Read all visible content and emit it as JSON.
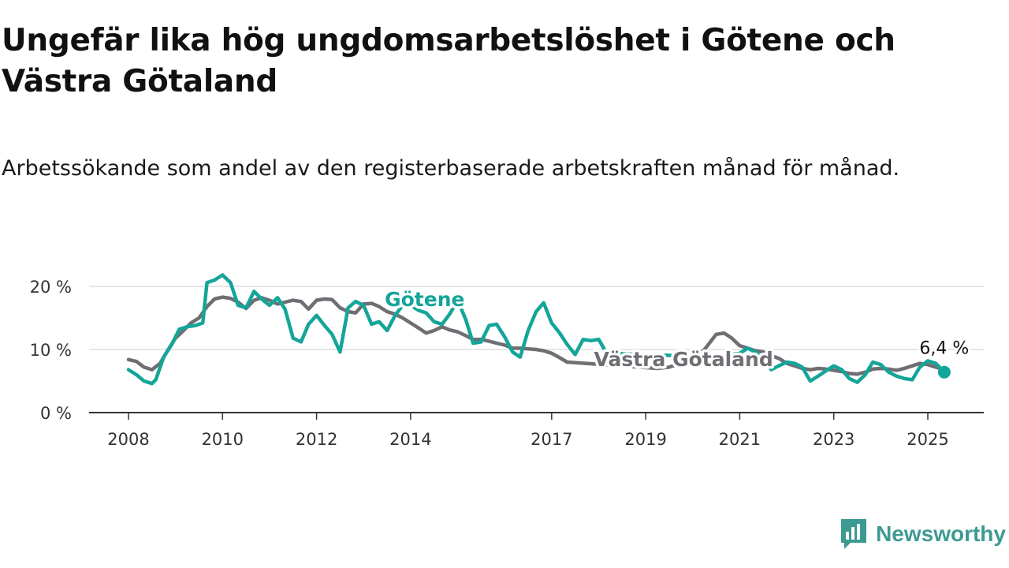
{
  "title": "Ungefär lika hög ungdomsarbetslöshet i Götene och Västra Götaland",
  "subtitle": "Arbetssökande som andel av den registerbaserade arbetskraften månad för månad.",
  "brand": {
    "name": "Newsworthy",
    "color": "#3d9a92",
    "icon": "newsworthy-logo-icon"
  },
  "colors": {
    "gotene": "#14a599",
    "vastra": "#6e6e73",
    "grid": "#dddddd",
    "axis": "#333333"
  },
  "chart_data": {
    "type": "line",
    "x_unit": "year (decimal)",
    "xlim": [
      2007.8,
      2026.2
    ],
    "ylim": [
      0,
      22
    ],
    "y_ticks": [
      0,
      10,
      20
    ],
    "y_tick_labels": [
      "0 %",
      "10 %",
      "20 %"
    ],
    "x_ticks": [
      2008,
      2010,
      2012,
      2014,
      2017,
      2019,
      2021,
      2023,
      2025
    ],
    "x_tick_labels": [
      "2008",
      "2010",
      "2012",
      "2014",
      "2017",
      "2019",
      "2021",
      "2023",
      "2025"
    ],
    "grid": true,
    "series": [
      {
        "name": "Västra Götaland",
        "x": [
          2008.0,
          2008.17,
          2008.33,
          2008.5,
          2008.67,
          2008.83,
          2009.0,
          2009.17,
          2009.33,
          2009.5,
          2009.67,
          2009.83,
          2010.0,
          2010.17,
          2010.33,
          2010.5,
          2010.67,
          2010.83,
          2011.0,
          2011.17,
          2011.33,
          2011.5,
          2011.67,
          2011.83,
          2012.0,
          2012.17,
          2012.33,
          2012.5,
          2012.67,
          2012.83,
          2013.0,
          2013.17,
          2013.33,
          2013.5,
          2013.67,
          2013.83,
          2014.0,
          2014.17,
          2014.33,
          2014.5,
          2014.67,
          2014.83,
          2015.0,
          2015.17,
          2015.33,
          2015.5,
          2015.67,
          2015.83,
          2016.0,
          2016.17,
          2016.33,
          2016.5,
          2016.67,
          2016.83,
          2017.0,
          2017.17,
          2017.33,
          2019.25,
          2019.5,
          2019.75,
          2020.0,
          2020.25,
          2020.5,
          2020.67,
          2020.83,
          2021.0,
          2021.17,
          2021.33,
          2021.5,
          2021.67,
          2021.83,
          2022.0,
          2022.17,
          2022.33,
          2022.5,
          2022.67,
          2022.83,
          2023.0,
          2023.17,
          2023.33,
          2023.5,
          2023.67,
          2023.83,
          2024.0,
          2024.17,
          2024.33,
          2024.5,
          2024.67,
          2024.83,
          2025.0,
          2025.17,
          2025.3
        ],
        "y": [
          8.4,
          8.1,
          7.2,
          6.8,
          7.8,
          9.8,
          11.8,
          13.0,
          14.2,
          15.0,
          16.8,
          18.0,
          18.3,
          18.1,
          17.5,
          16.5,
          17.8,
          18.2,
          17.8,
          17.2,
          17.5,
          17.8,
          17.6,
          16.4,
          17.8,
          18.0,
          17.9,
          16.6,
          16.0,
          15.8,
          17.2,
          17.3,
          16.8,
          16.0,
          15.6,
          15.0,
          14.2,
          13.4,
          12.6,
          13.0,
          13.6,
          13.1,
          12.8,
          12.2,
          11.6,
          11.6,
          11.3,
          11.0,
          10.7,
          10.2,
          10.2,
          10.1,
          10.0,
          9.8,
          9.4,
          8.7,
          8.0,
          7.0,
          7.2,
          7.8,
          8.6,
          10.0,
          12.4,
          12.6,
          11.8,
          10.6,
          10.2,
          9.8,
          9.6,
          9.0,
          8.6,
          7.8,
          7.4,
          7.0,
          6.8,
          7.0,
          6.9,
          6.7,
          6.5,
          6.2,
          6.1,
          6.4,
          6.9,
          7.0,
          6.9,
          6.7,
          7.0,
          7.4,
          7.8,
          7.6,
          7.2,
          6.9
        ]
      },
      {
        "name": "Götene",
        "x": [
          2008.0,
          2008.17,
          2008.33,
          2008.5,
          2008.58,
          2008.75,
          2008.92,
          2009.08,
          2009.25,
          2009.42,
          2009.58,
          2009.67,
          2009.83,
          2010.0,
          2010.17,
          2010.33,
          2010.5,
          2010.67,
          2010.83,
          2011.0,
          2011.17,
          2011.33,
          2011.5,
          2011.67,
          2011.83,
          2012.0,
          2012.17,
          2012.33,
          2012.5,
          2012.67,
          2012.83,
          2013.0,
          2013.17,
          2013.33,
          2013.5,
          2013.67,
          2013.83,
          2014.0,
          2014.17,
          2014.33,
          2014.5,
          2014.67,
          2014.83,
          2015.0,
          2015.17,
          2015.33,
          2015.5,
          2015.67,
          2015.83,
          2016.0,
          2016.17,
          2016.33,
          2016.5,
          2016.67,
          2016.83,
          2017.0,
          2017.17,
          2017.33,
          2017.5,
          2017.67,
          2017.83,
          2018.0,
          2018.17,
          2020.5,
          2020.67,
          2020.83,
          2021.0,
          2021.17,
          2021.33,
          2021.5,
          2021.67,
          2021.83,
          2022.0,
          2022.17,
          2022.33,
          2022.5,
          2022.67,
          2022.83,
          2023.0,
          2023.17,
          2023.33,
          2023.5,
          2023.67,
          2023.83,
          2024.0,
          2024.17,
          2024.33,
          2024.5,
          2024.67,
          2024.83,
          2025.0,
          2025.17,
          2025.35
        ],
        "y": [
          6.8,
          6.0,
          5.0,
          4.6,
          5.2,
          8.8,
          10.8,
          13.2,
          13.6,
          13.8,
          14.2,
          20.6,
          21.0,
          21.8,
          20.6,
          17.0,
          16.6,
          19.2,
          18.0,
          17.0,
          18.2,
          16.4,
          11.8,
          11.2,
          14.0,
          15.4,
          13.8,
          12.4,
          9.6,
          16.6,
          17.6,
          17.0,
          14.0,
          14.4,
          13.0,
          15.4,
          17.0,
          17.0,
          16.2,
          15.8,
          14.4,
          14.0,
          15.6,
          17.8,
          14.8,
          11.0,
          11.2,
          13.8,
          14.0,
          12.0,
          9.6,
          8.8,
          13.0,
          16.0,
          17.4,
          14.2,
          12.6,
          10.8,
          9.2,
          11.6,
          11.4,
          11.6,
          9.4,
          8.8,
          9.0,
          9.2,
          9.4,
          10.2,
          9.6,
          8.4,
          6.8,
          7.4,
          8.0,
          7.8,
          7.2,
          5.0,
          5.8,
          6.6,
          7.4,
          6.8,
          5.4,
          4.8,
          6.0,
          8.0,
          7.6,
          6.4,
          5.8,
          5.4,
          5.2,
          7.2,
          8.2,
          7.8,
          6.4
        ]
      }
    ],
    "annotations": [
      {
        "text": "Götene",
        "x": 2014.3,
        "y": 16.9,
        "series": "Götene"
      },
      {
        "text": "Västra Götaland",
        "x": 2017.9,
        "y": 7.4,
        "series": "Västra Götaland"
      },
      {
        "text": "6,4 %",
        "x": 2025.35,
        "y": 9.3,
        "series": "Götene"
      }
    ],
    "end_point": {
      "x": 2025.35,
      "y": 6.4
    }
  }
}
